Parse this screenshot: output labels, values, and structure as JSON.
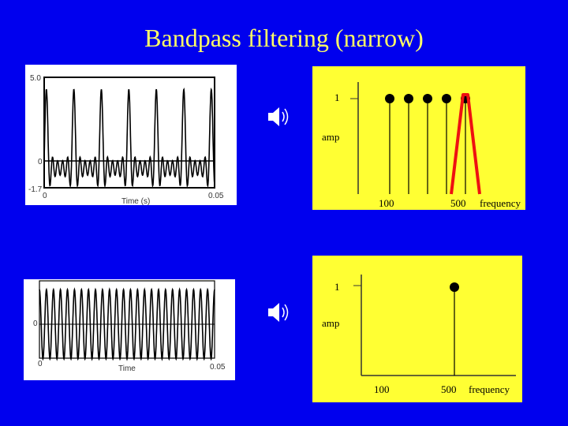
{
  "title": "Bandpass filtering  (narrow)",
  "top_wave": {
    "y_max": "5.0",
    "y_zero": "0",
    "y_min": "-1.7",
    "x_start": "0",
    "x_end": "0.05",
    "x_label": "Time (s)"
  },
  "top_spectrum": {
    "amp_value": "1",
    "amp_label": "amp",
    "tick_100": "100",
    "tick_500": "500",
    "x_label": "frequency",
    "peak_count": 5,
    "filter_color": "#ee1111"
  },
  "bottom_wave": {
    "y_zero": "0",
    "x_start": "0",
    "x_end": "0.05",
    "x_label": "Time"
  },
  "bottom_spectrum": {
    "amp_value": "1",
    "amp_label": "amp",
    "tick_100": "100",
    "tick_500": "500",
    "x_label": "frequency",
    "peak_count": 1
  },
  "colors": {
    "background": "#0000ee",
    "title": "#ffff66",
    "spectrum_panel": "#ffff33"
  },
  "icons": [
    "speaker-icon",
    "speaker-icon"
  ]
}
